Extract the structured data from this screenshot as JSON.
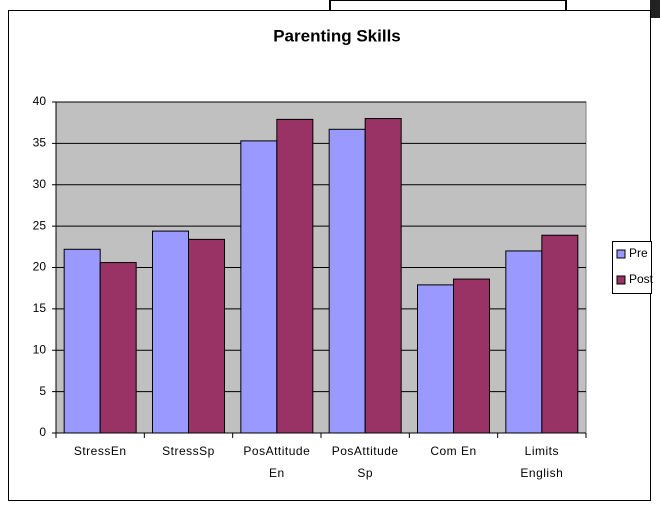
{
  "chart_data": {
    "type": "bar",
    "title": "Parenting Skills",
    "categories": [
      "StressEn",
      "StressSp",
      "PosAttitude En",
      "PosAttitude Sp",
      "Com En",
      "Limits English"
    ],
    "series": [
      {
        "name": "Pre",
        "color": "#9999ff",
        "values": [
          22.2,
          24.4,
          35.3,
          36.7,
          17.9,
          22.0
        ]
      },
      {
        "name": "Post",
        "color": "#993366",
        "values": [
          20.6,
          23.4,
          37.9,
          38.0,
          18.6,
          23.9
        ]
      }
    ],
    "ylim": [
      0,
      40
    ],
    "yticks": [
      0,
      5,
      10,
      15,
      20,
      25,
      30,
      35,
      40
    ],
    "grid": true,
    "legend": "right"
  }
}
